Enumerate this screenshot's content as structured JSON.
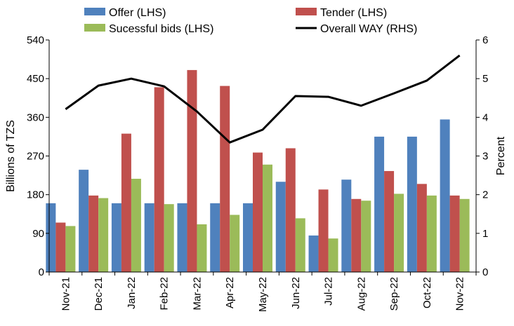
{
  "chart_data": {
    "type": "bar",
    "categories": [
      "Nov-21",
      "Dec-21",
      "Jan-22",
      "Feb-22",
      "Mar-22",
      "Apr-22",
      "May-22",
      "Jun-22",
      "Jul-22",
      "Aug-22",
      "Sep-22",
      "Oct-22",
      "Nov-22"
    ],
    "series": [
      {
        "name": "Offer (LHS)",
        "type": "bar",
        "axis": "left",
        "color": "#4f81bd",
        "values": [
          160,
          238,
          160,
          160,
          160,
          160,
          160,
          210,
          85,
          215,
          315,
          315,
          355
        ]
      },
      {
        "name": "Tender (LHS)",
        "type": "bar",
        "axis": "left",
        "color": "#c0504d",
        "values": [
          115,
          178,
          322,
          430,
          470,
          433,
          278,
          288,
          192,
          170,
          235,
          205,
          178
        ]
      },
      {
        "name": "Sucessful bids (LHS)",
        "type": "bar",
        "axis": "left",
        "color": "#9bbb59",
        "values": [
          107,
          172,
          217,
          158,
          111,
          133,
          250,
          125,
          78,
          166,
          182,
          178,
          170
        ]
      },
      {
        "name": "Overall WAY (RHS)",
        "type": "line",
        "axis": "right",
        "color": "#000000",
        "values": [
          4.21,
          4.82,
          5.0,
          4.8,
          4.15,
          3.35,
          3.68,
          4.55,
          4.53,
          4.3,
          4.62,
          4.95,
          5.6
        ]
      }
    ],
    "ylabel": "Billions of TZS",
    "y2label": "Percent",
    "ylim": [
      0,
      540
    ],
    "y2lim": [
      0,
      6
    ],
    "yticks": [
      0,
      90,
      180,
      270,
      360,
      450,
      540
    ],
    "y2ticks": [
      0,
      1,
      2,
      3,
      4,
      5,
      6
    ],
    "legend_position": "top",
    "grid": false
  }
}
